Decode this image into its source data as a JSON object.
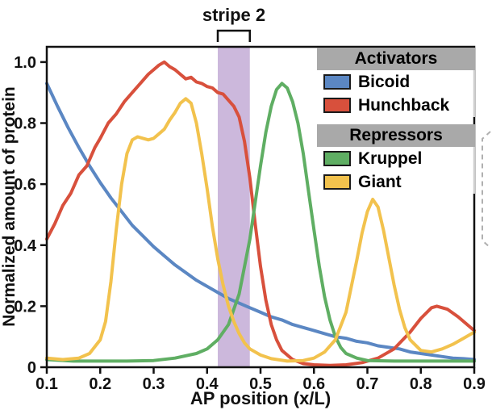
{
  "chart_data": {
    "type": "line",
    "title": "",
    "xlabel": "AP position (x/L)",
    "ylabel": "Normalized amount of protein",
    "xlim": [
      0.1,
      0.9
    ],
    "ylim": [
      0,
      1.05
    ],
    "xticks": [
      0.1,
      0.2,
      0.3,
      0.4,
      0.5,
      0.6,
      0.7,
      0.8,
      0.9
    ],
    "xtick_labels": [
      "0.1",
      "0.2",
      "0.3",
      "0.4",
      "0.5",
      "0.6",
      "0.7",
      "0.8",
      "0.9"
    ],
    "yticks": [
      0,
      0.2,
      0.4,
      0.6,
      0.8,
      1.0
    ],
    "ytick_labels": [
      "0",
      "0.2",
      "0.4",
      "0.6",
      "0.8",
      "1.0"
    ],
    "grid": false,
    "legend_position": "upper right",
    "band": {
      "label": "stripe 2",
      "x0": 0.42,
      "x1": 0.48,
      "color": "#c6b0d8"
    },
    "series": [
      {
        "name": "Bicoid",
        "role": "activator",
        "color": "#5b87c3",
        "points": [
          [
            0.1,
            0.93
          ],
          [
            0.12,
            0.855
          ],
          [
            0.14,
            0.785
          ],
          [
            0.16,
            0.72
          ],
          [
            0.18,
            0.66
          ],
          [
            0.2,
            0.605
          ],
          [
            0.22,
            0.555
          ],
          [
            0.24,
            0.51
          ],
          [
            0.26,
            0.465
          ],
          [
            0.28,
            0.43
          ],
          [
            0.3,
            0.395
          ],
          [
            0.32,
            0.365
          ],
          [
            0.34,
            0.335
          ],
          [
            0.36,
            0.31
          ],
          [
            0.38,
            0.285
          ],
          [
            0.4,
            0.265
          ],
          [
            0.42,
            0.245
          ],
          [
            0.44,
            0.225
          ],
          [
            0.46,
            0.21
          ],
          [
            0.48,
            0.195
          ],
          [
            0.5,
            0.18
          ],
          [
            0.52,
            0.165
          ],
          [
            0.54,
            0.155
          ],
          [
            0.56,
            0.14
          ],
          [
            0.58,
            0.13
          ],
          [
            0.6,
            0.12
          ],
          [
            0.62,
            0.11
          ],
          [
            0.64,
            0.1
          ],
          [
            0.66,
            0.095
          ],
          [
            0.68,
            0.085
          ],
          [
            0.7,
            0.08
          ],
          [
            0.72,
            0.07
          ],
          [
            0.74,
            0.065
          ],
          [
            0.76,
            0.06
          ],
          [
            0.78,
            0.05
          ],
          [
            0.8,
            0.045
          ],
          [
            0.82,
            0.04
          ],
          [
            0.84,
            0.035
          ],
          [
            0.86,
            0.03
          ],
          [
            0.88,
            0.028
          ],
          [
            0.9,
            0.025
          ]
        ]
      },
      {
        "name": "Hunchback",
        "role": "activator",
        "color": "#d8503c",
        "points": [
          [
            0.1,
            0.42
          ],
          [
            0.115,
            0.47
          ],
          [
            0.13,
            0.53
          ],
          [
            0.145,
            0.57
          ],
          [
            0.16,
            0.63
          ],
          [
            0.175,
            0.66
          ],
          [
            0.19,
            0.72
          ],
          [
            0.2,
            0.75
          ],
          [
            0.215,
            0.8
          ],
          [
            0.23,
            0.83
          ],
          [
            0.245,
            0.87
          ],
          [
            0.26,
            0.9
          ],
          [
            0.275,
            0.93
          ],
          [
            0.29,
            0.96
          ],
          [
            0.3,
            0.975
          ],
          [
            0.31,
            0.99
          ],
          [
            0.32,
            1.0
          ],
          [
            0.33,
            0.985
          ],
          [
            0.34,
            0.975
          ],
          [
            0.35,
            0.96
          ],
          [
            0.36,
            0.945
          ],
          [
            0.37,
            0.95
          ],
          [
            0.38,
            0.935
          ],
          [
            0.39,
            0.93
          ],
          [
            0.4,
            0.92
          ],
          [
            0.41,
            0.915
          ],
          [
            0.42,
            0.9
          ],
          [
            0.43,
            0.895
          ],
          [
            0.44,
            0.875
          ],
          [
            0.45,
            0.855
          ],
          [
            0.46,
            0.82
          ],
          [
            0.47,
            0.74
          ],
          [
            0.48,
            0.62
          ],
          [
            0.49,
            0.47
          ],
          [
            0.5,
            0.33
          ],
          [
            0.51,
            0.22
          ],
          [
            0.52,
            0.14
          ],
          [
            0.53,
            0.09
          ],
          [
            0.54,
            0.055
          ],
          [
            0.56,
            0.025
          ],
          [
            0.58,
            0.012
          ],
          [
            0.6,
            0.008
          ],
          [
            0.63,
            0.006
          ],
          [
            0.66,
            0.008
          ],
          [
            0.69,
            0.015
          ],
          [
            0.72,
            0.03
          ],
          [
            0.75,
            0.06
          ],
          [
            0.78,
            0.115
          ],
          [
            0.8,
            0.16
          ],
          [
            0.82,
            0.195
          ],
          [
            0.83,
            0.2
          ],
          [
            0.85,
            0.19
          ],
          [
            0.87,
            0.165
          ],
          [
            0.89,
            0.135
          ],
          [
            0.9,
            0.12
          ]
        ]
      },
      {
        "name": "Kruppel",
        "role": "repressor",
        "color": "#5fae63",
        "points": [
          [
            0.1,
            0.025
          ],
          [
            0.15,
            0.02
          ],
          [
            0.2,
            0.02
          ],
          [
            0.25,
            0.02
          ],
          [
            0.3,
            0.022
          ],
          [
            0.34,
            0.03
          ],
          [
            0.38,
            0.045
          ],
          [
            0.4,
            0.06
          ],
          [
            0.42,
            0.09
          ],
          [
            0.44,
            0.14
          ],
          [
            0.46,
            0.24
          ],
          [
            0.48,
            0.42
          ],
          [
            0.5,
            0.66
          ],
          [
            0.51,
            0.77
          ],
          [
            0.52,
            0.855
          ],
          [
            0.53,
            0.91
          ],
          [
            0.54,
            0.93
          ],
          [
            0.55,
            0.915
          ],
          [
            0.56,
            0.87
          ],
          [
            0.57,
            0.8
          ],
          [
            0.58,
            0.7
          ],
          [
            0.59,
            0.575
          ],
          [
            0.6,
            0.45
          ],
          [
            0.61,
            0.33
          ],
          [
            0.62,
            0.23
          ],
          [
            0.63,
            0.155
          ],
          [
            0.64,
            0.1
          ],
          [
            0.65,
            0.065
          ],
          [
            0.66,
            0.045
          ],
          [
            0.68,
            0.03
          ],
          [
            0.7,
            0.022
          ],
          [
            0.75,
            0.02
          ],
          [
            0.8,
            0.02
          ],
          [
            0.85,
            0.02
          ],
          [
            0.9,
            0.02
          ]
        ]
      },
      {
        "name": "Giant",
        "role": "repressor",
        "color": "#f2c24d",
        "points": [
          [
            0.1,
            0.03
          ],
          [
            0.13,
            0.025
          ],
          [
            0.16,
            0.03
          ],
          [
            0.18,
            0.045
          ],
          [
            0.2,
            0.09
          ],
          [
            0.21,
            0.15
          ],
          [
            0.22,
            0.28
          ],
          [
            0.23,
            0.45
          ],
          [
            0.24,
            0.6
          ],
          [
            0.25,
            0.7
          ],
          [
            0.26,
            0.745
          ],
          [
            0.27,
            0.755
          ],
          [
            0.28,
            0.75
          ],
          [
            0.29,
            0.745
          ],
          [
            0.3,
            0.75
          ],
          [
            0.31,
            0.765
          ],
          [
            0.32,
            0.78
          ],
          [
            0.33,
            0.81
          ],
          [
            0.34,
            0.835
          ],
          [
            0.35,
            0.865
          ],
          [
            0.36,
            0.88
          ],
          [
            0.37,
            0.865
          ],
          [
            0.38,
            0.8
          ],
          [
            0.39,
            0.7
          ],
          [
            0.4,
            0.585
          ],
          [
            0.41,
            0.46
          ],
          [
            0.42,
            0.355
          ],
          [
            0.43,
            0.27
          ],
          [
            0.44,
            0.2
          ],
          [
            0.45,
            0.15
          ],
          [
            0.46,
            0.11
          ],
          [
            0.47,
            0.08
          ],
          [
            0.48,
            0.06
          ],
          [
            0.5,
            0.04
          ],
          [
            0.52,
            0.028
          ],
          [
            0.55,
            0.02
          ],
          [
            0.58,
            0.022
          ],
          [
            0.6,
            0.03
          ],
          [
            0.62,
            0.05
          ],
          [
            0.64,
            0.09
          ],
          [
            0.66,
            0.18
          ],
          [
            0.68,
            0.35
          ],
          [
            0.69,
            0.44
          ],
          [
            0.7,
            0.51
          ],
          [
            0.71,
            0.55
          ],
          [
            0.72,
            0.525
          ],
          [
            0.73,
            0.45
          ],
          [
            0.74,
            0.36
          ],
          [
            0.75,
            0.27
          ],
          [
            0.76,
            0.19
          ],
          [
            0.77,
            0.13
          ],
          [
            0.78,
            0.09
          ],
          [
            0.8,
            0.055
          ],
          [
            0.82,
            0.05
          ],
          [
            0.84,
            0.06
          ],
          [
            0.86,
            0.075
          ],
          [
            0.88,
            0.095
          ],
          [
            0.9,
            0.115
          ]
        ]
      }
    ]
  },
  "legend": {
    "header_bg": "#a9a9a9",
    "groups": [
      {
        "header": "Activators",
        "entries": [
          {
            "label": "Bicoid",
            "color": "#5b87c3"
          },
          {
            "label": "Hunchback",
            "color": "#d8503c"
          }
        ]
      },
      {
        "header": "Repressors",
        "entries": [
          {
            "label": "Kruppel",
            "color": "#5fae63"
          },
          {
            "label": "Giant",
            "color": "#f2c24d"
          }
        ]
      }
    ]
  }
}
